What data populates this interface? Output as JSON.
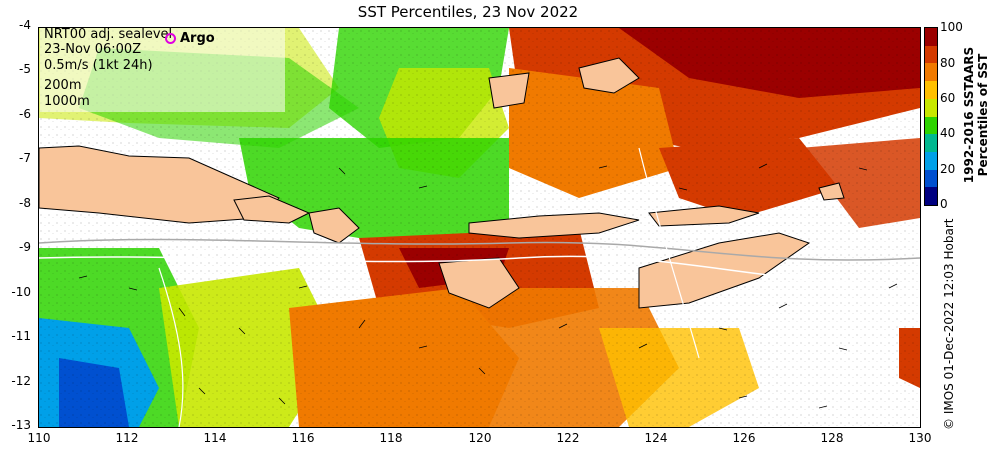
{
  "title": "SST Percentiles, 23 Nov 2022",
  "legend": {
    "lines": [
      "NRT00 adj. sealevel",
      "23-Nov 06:00Z",
      "0.5m/s (1kt 24h)",
      "200m",
      "1000m"
    ],
    "argo_label": "Argo",
    "argo_color": "#e000e0"
  },
  "axes": {
    "y_ticks": [
      "-4",
      "-5",
      "-6",
      "-7",
      "-8",
      "-9",
      "-10",
      "-11",
      "-12",
      "-13"
    ],
    "x_ticks": [
      "110",
      "112",
      "114",
      "116",
      "118",
      "120",
      "122",
      "124",
      "126",
      "128",
      "130"
    ],
    "lon_range": [
      110,
      130
    ],
    "lat_range": [
      -13,
      -4
    ]
  },
  "colorbar": {
    "ticks": [
      "100",
      "80",
      "60",
      "40",
      "20",
      "0"
    ],
    "title_line1": "1992-2016 SSTAARS",
    "title_line2": "Percentiles of SST",
    "colors": [
      "#9b0000",
      "#d43a00",
      "#f07a00",
      "#ffc000",
      "#c8e800",
      "#2ed400",
      "#00b890",
      "#00a0e8",
      "#0050d0",
      "#000080"
    ]
  },
  "colors": {
    "land": "#f9c59a",
    "coast": "#000000",
    "contour_200": "#a9a9a9",
    "contour_1000": "#ffffff"
  },
  "credit": "© IMOS 01-Dec-2022 12:03 Hobart"
}
